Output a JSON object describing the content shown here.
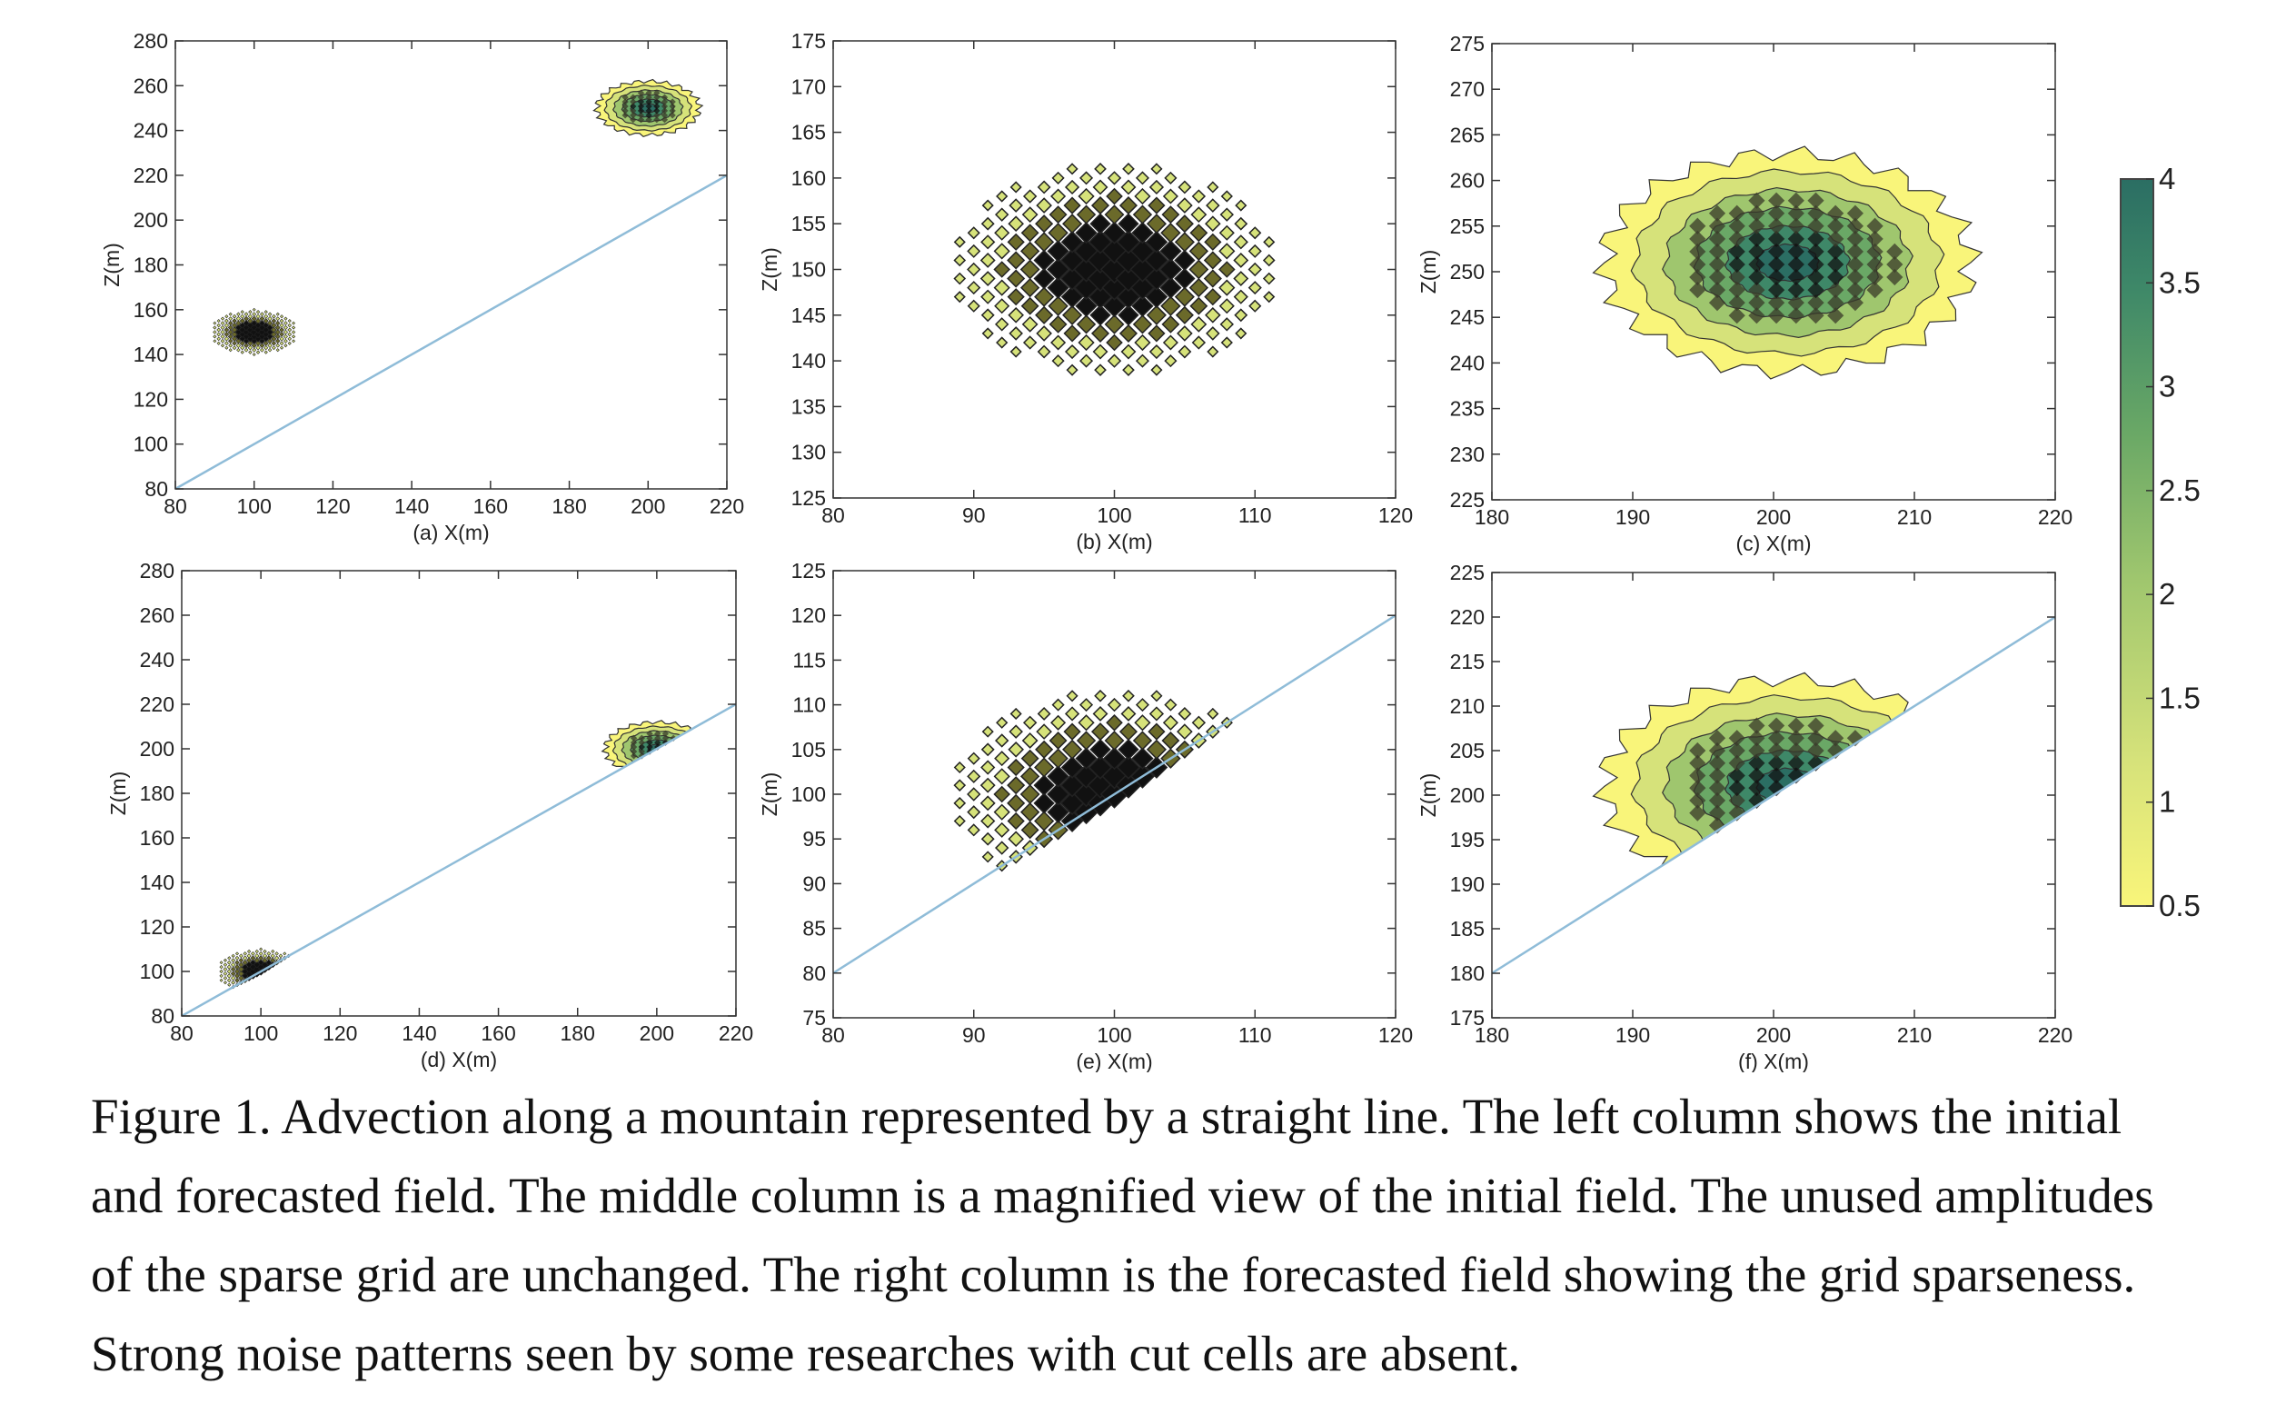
{
  "figure": {
    "caption_lines": [
      "Figure 1. Advection along a mountain represented by a straight line. The left column shows the initial",
      "and forecasted field. The middle column is a magnified view of the initial field. The unused amplitudes",
      "of the sparse grid are unchanged. The right column is the forecasted field showing the grid sparseness.",
      "Strong noise patterns seen by some researches with cut cells are absent."
    ]
  },
  "colors": {
    "mountain_line": "#8fbcd8",
    "colormap": [
      "#f9f57a",
      "#d6e27a",
      "#9fc66e",
      "#6aa866",
      "#3e8868",
      "#2b6e63"
    ],
    "marker": "#1a1a1a",
    "axis": "#333333"
  },
  "chart_data": [
    {
      "id": "a",
      "type": "scatter",
      "panel_label": "(a) X(m)",
      "ylabel": "Z(m)",
      "xlim": [
        80,
        220
      ],
      "ylim": [
        80,
        280
      ],
      "xticks": [
        80,
        100,
        120,
        140,
        160,
        180,
        200,
        220
      ],
      "yticks": [
        80,
        100,
        120,
        140,
        160,
        180,
        200,
        220,
        240,
        260,
        280
      ],
      "mountain_line": [
        [
          80,
          80
        ],
        [
          220,
          220
        ]
      ],
      "blobs": [
        {
          "center": [
            100,
            150
          ],
          "rx": 11,
          "rz": 10,
          "style": "initial"
        },
        {
          "center": [
            200,
            250
          ],
          "rx": 13,
          "rz": 12,
          "style": "forecast"
        }
      ]
    },
    {
      "id": "b",
      "type": "scatter",
      "panel_label": "(b) X(m)",
      "ylabel": "Z(m)",
      "xlim": [
        80,
        120
      ],
      "ylim": [
        125,
        175
      ],
      "xticks": [
        80,
        90,
        100,
        110,
        120
      ],
      "yticks": [
        125,
        130,
        135,
        140,
        145,
        150,
        155,
        160,
        165,
        170,
        175
      ],
      "mountain_line": [],
      "blobs": [
        {
          "center": [
            100,
            150
          ],
          "rx": 11.5,
          "rz": 11.5,
          "style": "initial"
        }
      ]
    },
    {
      "id": "c",
      "type": "heatmap",
      "panel_label": "(c) X(m)",
      "ylabel": "Z(m)",
      "xlim": [
        180,
        220
      ],
      "ylim": [
        225,
        275
      ],
      "xticks": [
        180,
        190,
        200,
        210,
        220
      ],
      "yticks": [
        225,
        230,
        235,
        240,
        245,
        250,
        255,
        260,
        265,
        270,
        275
      ],
      "mountain_line": [],
      "blobs": [
        {
          "center": [
            201,
            251
          ],
          "rx": 13,
          "rz": 12,
          "style": "forecast"
        }
      ]
    },
    {
      "id": "d",
      "type": "scatter",
      "panel_label": "(d) X(m)",
      "ylabel": "Z(m)",
      "xlim": [
        80,
        220
      ],
      "ylim": [
        80,
        280
      ],
      "xticks": [
        80,
        100,
        120,
        140,
        160,
        180,
        200,
        220
      ],
      "yticks": [
        80,
        100,
        120,
        140,
        160,
        180,
        200,
        220,
        240,
        260,
        280
      ],
      "mountain_line": [
        [
          80,
          80
        ],
        [
          220,
          220
        ]
      ],
      "blobs": [
        {
          "center": [
            100,
            100
          ],
          "rx": 11,
          "rz": 10,
          "style": "initial",
          "clip_line": true
        },
        {
          "center": [
            200,
            200
          ],
          "rx": 13,
          "rz": 12,
          "style": "forecast",
          "clip_line": true
        }
      ]
    },
    {
      "id": "e",
      "type": "scatter",
      "panel_label": "(e) X(m)",
      "ylabel": "Z(m)",
      "xlim": [
        80,
        120
      ],
      "ylim": [
        75,
        125
      ],
      "xticks": [
        80,
        90,
        100,
        110,
        120
      ],
      "yticks": [
        75,
        80,
        85,
        90,
        95,
        100,
        105,
        110,
        115,
        120,
        125
      ],
      "mountain_line": [
        [
          80,
          80
        ],
        [
          120,
          120
        ]
      ],
      "blobs": [
        {
          "center": [
            100,
            100
          ],
          "rx": 11.5,
          "rz": 11.5,
          "style": "initial",
          "clip_line": true
        }
      ]
    },
    {
      "id": "f",
      "type": "heatmap",
      "panel_label": "(f) X(m)",
      "ylabel": "Z(m)",
      "xlim": [
        180,
        220
      ],
      "ylim": [
        175,
        225
      ],
      "xticks": [
        180,
        190,
        200,
        210,
        220
      ],
      "yticks": [
        175,
        180,
        185,
        190,
        195,
        200,
        205,
        210,
        215,
        220,
        225
      ],
      "mountain_line": [
        [
          180,
          180
        ],
        [
          220,
          220
        ]
      ],
      "blobs": [
        {
          "center": [
            201,
            201
          ],
          "rx": 13,
          "rz": 12,
          "style": "forecast",
          "clip_line": true
        }
      ]
    },
    {
      "id": "colorbar",
      "type": "heatmap",
      "range": [
        0.5,
        4
      ],
      "ticks": [
        "4",
        "3.5",
        "3",
        "2.5",
        "2",
        "1.5",
        "1",
        "0.5"
      ],
      "tick_values": [
        4,
        3.5,
        3,
        2.5,
        2,
        1.5,
        1,
        0.5
      ]
    }
  ]
}
